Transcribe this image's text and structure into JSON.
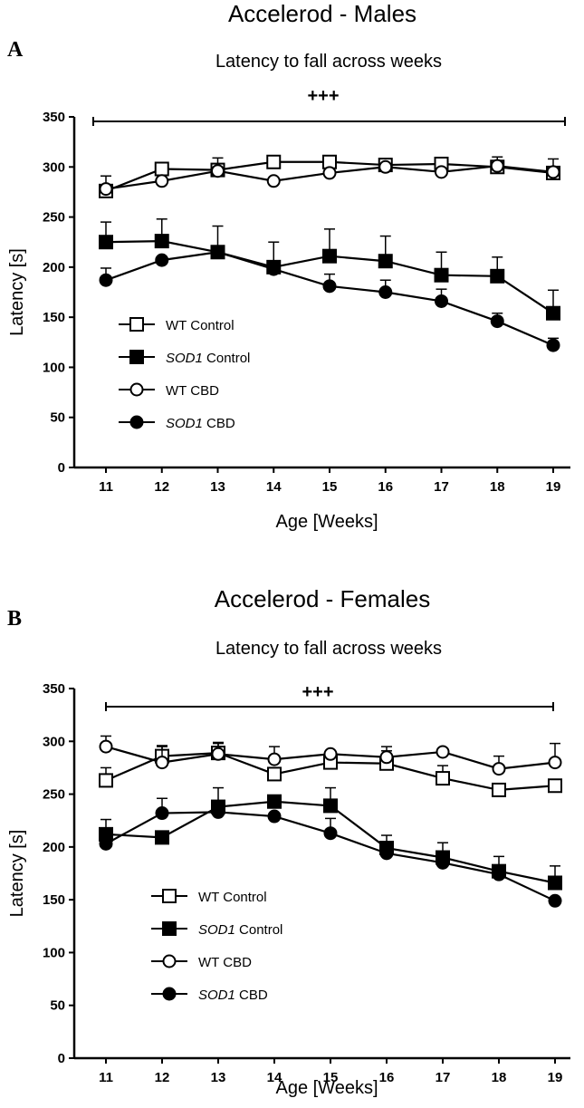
{
  "chart_data": [
    {
      "type": "line",
      "panel": "A",
      "title": "Accelerod - Males",
      "subtitle": "Latency to fall across weeks",
      "xlabel": "Age [Weeks]",
      "ylabel": "Latency [s]",
      "x": [
        11,
        12,
        13,
        14,
        15,
        16,
        17,
        18,
        19
      ],
      "ylim": [
        0,
        350
      ],
      "yticks": [
        0,
        50,
        100,
        150,
        200,
        250,
        300,
        350
      ],
      "significance": "+++",
      "legend_position": "bottom-left",
      "series": [
        {
          "name": "WT Control",
          "genotype": "WT",
          "group": "Control",
          "marker": "square",
          "fill": "open",
          "values": [
            276,
            298,
            297,
            305,
            305,
            302,
            303,
            300,
            294
          ],
          "error": [
            15,
            0,
            12,
            0,
            0,
            0,
            0,
            10,
            14
          ]
        },
        {
          "name": "SOD1 Control",
          "genotype": "SOD1",
          "group": "Control",
          "marker": "square",
          "fill": "filled",
          "values": [
            225,
            226,
            215,
            200,
            211,
            206,
            192,
            191,
            154
          ],
          "error": [
            20,
            22,
            26,
            25,
            27,
            25,
            23,
            19,
            23
          ]
        },
        {
          "name": "WT CBD",
          "genotype": "WT",
          "group": "CBD",
          "marker": "circle",
          "fill": "open",
          "values": [
            278,
            286,
            296,
            286,
            294,
            300,
            295,
            301,
            295
          ],
          "error": [
            0,
            0,
            0,
            0,
            0,
            0,
            0,
            0,
            0
          ]
        },
        {
          "name": "SOD1 CBD",
          "genotype": "SOD1",
          "group": "CBD",
          "marker": "circle",
          "fill": "filled",
          "values": [
            187,
            207,
            215,
            198,
            181,
            175,
            166,
            146,
            122
          ],
          "error": [
            12,
            0,
            0,
            0,
            12,
            12,
            12,
            8,
            7
          ]
        }
      ]
    },
    {
      "type": "line",
      "panel": "B",
      "title": "Accelerod - Females",
      "subtitle": "Latency to fall across weeks",
      "xlabel": "Age [Weeks]",
      "ylabel": "Latency [s]",
      "x": [
        11,
        12,
        13,
        14,
        15,
        16,
        17,
        18,
        19
      ],
      "ylim": [
        0,
        350
      ],
      "yticks": [
        0,
        50,
        100,
        150,
        200,
        250,
        300,
        350
      ],
      "significance": "+++",
      "legend_position": "bottom-left",
      "series": [
        {
          "name": "WT Control",
          "genotype": "WT",
          "group": "Control",
          "marker": "square",
          "fill": "open",
          "values": [
            263,
            286,
            289,
            269,
            280,
            279,
            265,
            254,
            258
          ],
          "error": [
            12,
            10,
            10,
            0,
            10,
            12,
            12,
            0,
            0
          ]
        },
        {
          "name": "SOD1 Control",
          "genotype": "SOD1",
          "group": "Control",
          "marker": "square",
          "fill": "filled",
          "values": [
            212,
            209,
            238,
            243,
            239,
            199,
            190,
            177,
            166
          ],
          "error": [
            14,
            0,
            18,
            0,
            17,
            12,
            14,
            14,
            16
          ]
        },
        {
          "name": "WT CBD",
          "genotype": "WT",
          "group": "CBD",
          "marker": "circle",
          "fill": "open",
          "values": [
            295,
            280,
            288,
            283,
            288,
            285,
            290,
            274,
            280
          ],
          "error": [
            10,
            15,
            10,
            12,
            0,
            10,
            0,
            12,
            18
          ]
        },
        {
          "name": "SOD1 CBD",
          "genotype": "SOD1",
          "group": "CBD",
          "marker": "circle",
          "fill": "filled",
          "values": [
            203,
            232,
            233,
            229,
            213,
            194,
            185,
            174,
            149
          ],
          "error": [
            0,
            14,
            0,
            0,
            14,
            0,
            0,
            0,
            0
          ]
        }
      ]
    }
  ]
}
